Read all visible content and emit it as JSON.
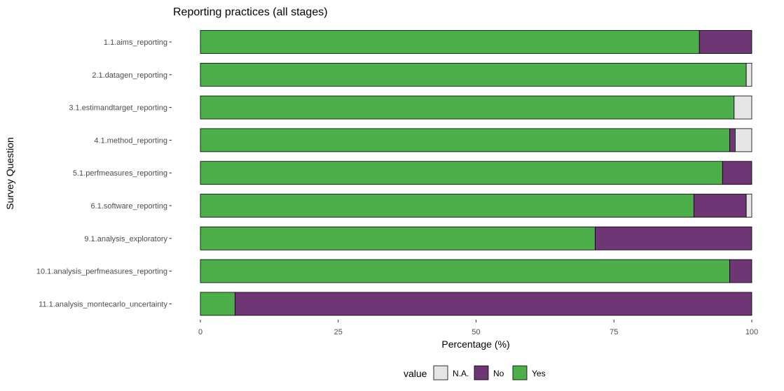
{
  "chart_data": {
    "type": "bar",
    "orientation": "horizontal",
    "stacked": true,
    "title": "Reporting practices (all stages)",
    "xlabel": "Percentage (%)",
    "ylabel": "Survey Question",
    "xlim": [
      0,
      100
    ],
    "xticks": [
      "0",
      "25",
      "50",
      "75",
      "100"
    ],
    "grid": false,
    "legend_position": "bottom",
    "legend_title": "value",
    "categories": [
      "1.1.aims_reporting",
      "2.1.datagen_reporting",
      "3.1.estimandtarget_reporting",
      "4.1.method_reporting",
      "5.1.perfmeasures_reporting",
      "6.1.software_reporting",
      "9.1.analysis_exploratory",
      "10.1.analysis_perfmeasures_reporting",
      "11.1.analysis_montecarlo_uncertainty"
    ],
    "series": [
      {
        "name": "Yes",
        "color": "#4daf4a",
        "values": [
          90.5,
          99.0,
          96.8,
          96.0,
          94.7,
          89.5,
          71.6,
          96.0,
          6.3
        ]
      },
      {
        "name": "No",
        "color": "#6f3676",
        "values": [
          9.5,
          0.0,
          0.0,
          1.0,
          5.3,
          9.5,
          28.4,
          4.0,
          93.7
        ]
      },
      {
        "name": "N.A.",
        "color": "#e5e5e5",
        "values": [
          0.0,
          1.0,
          3.2,
          3.0,
          0.0,
          1.0,
          0.0,
          0.0,
          0.0
        ]
      }
    ],
    "legend_order": [
      "N.A.",
      "No",
      "Yes"
    ]
  }
}
